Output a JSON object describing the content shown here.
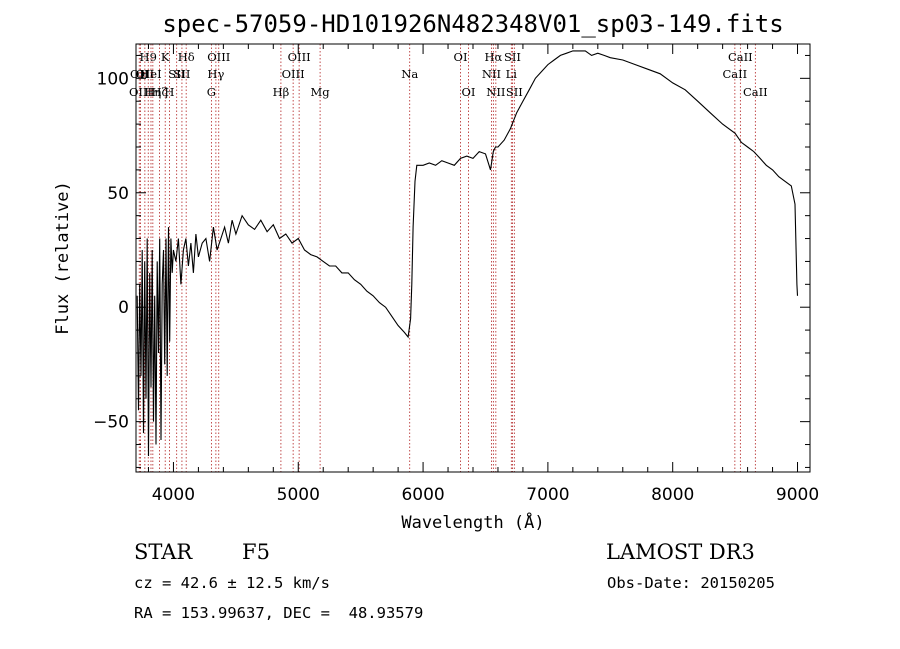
{
  "chart_data": {
    "type": "line",
    "title": "spec-57059-HD101926N482348V01_sp03-149.fits",
    "xlabel": "Wavelength (Å)",
    "ylabel": "Flux (relative)",
    "xlim": [
      3700,
      9100
    ],
    "ylim": [
      -72,
      115
    ],
    "x_ticks": [
      4000,
      5000,
      6000,
      7000,
      8000,
      9000
    ],
    "x_tick_labels": [
      "4000",
      "5000",
      "6000",
      "7000",
      "8000",
      "9000"
    ],
    "y_ticks": [
      -50,
      0,
      50,
      100
    ],
    "y_tick_labels": [
      "−50",
      "0",
      "50",
      "100"
    ],
    "series": [
      {
        "name": "flux",
        "x": [
          3710,
          3720,
          3730,
          3740,
          3750,
          3760,
          3770,
          3780,
          3790,
          3800,
          3810,
          3820,
          3830,
          3840,
          3850,
          3860,
          3870,
          3880,
          3890,
          3900,
          3910,
          3920,
          3930,
          3940,
          3950,
          3960,
          3970,
          3980,
          3990,
          4000,
          4020,
          4040,
          4060,
          4080,
          4100,
          4120,
          4140,
          4160,
          4180,
          4200,
          4230,
          4260,
          4290,
          4320,
          4350,
          4380,
          4410,
          4440,
          4470,
          4500,
          4550,
          4600,
          4650,
          4700,
          4750,
          4800,
          4850,
          4900,
          4950,
          5000,
          5050,
          5100,
          5150,
          5200,
          5250,
          5300,
          5350,
          5400,
          5450,
          5500,
          5550,
          5600,
          5650,
          5700,
          5750,
          5800,
          5850,
          5880,
          5900,
          5910,
          5920,
          5935,
          5950,
          6000,
          6050,
          6100,
          6150,
          6200,
          6250,
          6300,
          6350,
          6400,
          6450,
          6500,
          6540,
          6563,
          6580,
          6600,
          6650,
          6700,
          6750,
          6800,
          6850,
          6900,
          6950,
          7000,
          7050,
          7100,
          7150,
          7200,
          7250,
          7300,
          7350,
          7400,
          7450,
          7500,
          7600,
          7700,
          7800,
          7900,
          8000,
          8100,
          8200,
          8300,
          8400,
          8500,
          8550,
          8600,
          8650,
          8700,
          8750,
          8800,
          8850,
          8900,
          8950,
          8980,
          8995,
          9000
        ],
        "values": [
          5,
          -45,
          10,
          -30,
          25,
          -55,
          20,
          -40,
          30,
          -65,
          15,
          -35,
          25,
          -50,
          5,
          -60,
          20,
          -20,
          30,
          -58,
          10,
          25,
          -25,
          30,
          -30,
          35,
          -15,
          30,
          15,
          25,
          20,
          30,
          10,
          25,
          30,
          18,
          28,
          15,
          32,
          22,
          28,
          30,
          20,
          35,
          25,
          30,
          35,
          28,
          38,
          32,
          40,
          36,
          34,
          38,
          33,
          36,
          30,
          32,
          28,
          30,
          25,
          23,
          22,
          20,
          18,
          18,
          15,
          15,
          12,
          10,
          7,
          5,
          2,
          0,
          -4,
          -8,
          -11,
          -13,
          -5,
          10,
          35,
          55,
          62,
          62,
          63,
          62,
          64,
          63,
          62,
          65,
          66,
          65,
          68,
          67,
          60,
          68,
          70,
          70,
          73,
          78,
          85,
          90,
          95,
          100,
          103,
          106,
          108,
          110,
          111,
          112,
          112,
          112,
          110,
          111,
          110,
          109,
          108,
          106,
          104,
          102,
          98,
          95,
          90,
          85,
          80,
          76,
          72,
          70,
          68,
          65,
          62,
          60,
          57,
          55,
          53,
          45,
          10,
          5
        ]
      }
    ],
    "line_marks": [
      {
        "x": 3726,
        "label": "OII",
        "row": 2
      },
      {
        "x": 3736,
        "label": "OIII",
        "row": 3
      },
      {
        "x": 3771,
        "label": "OII",
        "row": 2
      },
      {
        "x": 3798,
        "label": "H9",
        "row": 1
      },
      {
        "x": 3820,
        "label": "HeI",
        "row": 2
      },
      {
        "x": 3835,
        "label": "Hη",
        "row": 3
      },
      {
        "x": 3889,
        "label": "Hζ",
        "row": 3
      },
      {
        "x": 3934,
        "label": "K",
        "row": 1
      },
      {
        "x": 3968,
        "label": "H",
        "row": 3
      },
      {
        "x": 4026,
        "label": "SII",
        "row": 2
      },
      {
        "x": 4068,
        "label": "SII",
        "row": 2
      },
      {
        "x": 4102,
        "label": "Hδ",
        "row": 1
      },
      {
        "x": 4304,
        "label": "G",
        "row": 3
      },
      {
        "x": 4340,
        "label": "Hγ",
        "row": 2
      },
      {
        "x": 4363,
        "label": "OIII",
        "row": 1
      },
      {
        "x": 4861,
        "label": "Hβ",
        "row": 3
      },
      {
        "x": 4959,
        "label": "OIII",
        "row": 2
      },
      {
        "x": 5007,
        "label": "OIII",
        "row": 1
      },
      {
        "x": 5175,
        "label": "Mg",
        "row": 3
      },
      {
        "x": 5893,
        "label": "Na",
        "row": 2
      },
      {
        "x": 6300,
        "label": "OI",
        "row": 1
      },
      {
        "x": 6364,
        "label": "OI",
        "row": 3
      },
      {
        "x": 6548,
        "label": "NII",
        "row": 2
      },
      {
        "x": 6563,
        "label": "Hα",
        "row": 1
      },
      {
        "x": 6583,
        "label": "NII",
        "row": 3
      },
      {
        "x": 6707,
        "label": "Li",
        "row": 2
      },
      {
        "x": 6716,
        "label": "SII",
        "row": 1
      },
      {
        "x": 6731,
        "label": "SII",
        "row": 3
      },
      {
        "x": 8498,
        "label": "CaII",
        "row": 2
      },
      {
        "x": 8542,
        "label": "CaII",
        "row": 1
      },
      {
        "x": 8662,
        "label": "CaII",
        "row": 3
      }
    ]
  },
  "info": {
    "class_label": "STAR",
    "subclass": "F5",
    "survey": "LAMOST DR3",
    "cz_text": "cz = 42.6 ± 12.5 km/s",
    "obs_date_text": "Obs-Date: 20150205",
    "coords_text": "RA = 153.99637, DEC =  48.93579"
  }
}
